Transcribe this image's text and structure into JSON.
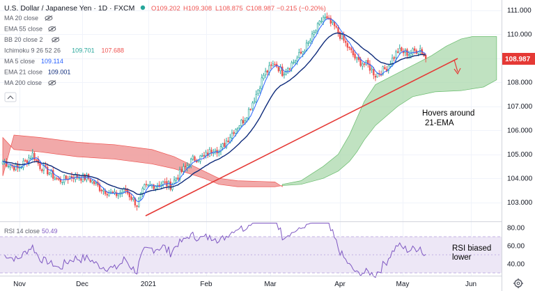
{
  "header": {
    "symbol": "U.S. Dollar / Japanese Yen · 1D · FXCM",
    "ohlc": {
      "open": "O109.202",
      "high": "H109.308",
      "low": "L108.875",
      "close": "C108.987",
      "change": "−0.215 (−0.20%)"
    }
  },
  "indicators": [
    {
      "id": "ma20",
      "label": "MA 20 close",
      "values": [],
      "visible": false
    },
    {
      "id": "ema55",
      "label": "EMA 55 close",
      "values": [],
      "visible": false
    },
    {
      "id": "bb",
      "label": "BB 20 close 2",
      "values": [],
      "visible": false
    },
    {
      "id": "ichimoku",
      "label": "Ichimoku 9 26 52 26",
      "values": [
        "109.701",
        "107.688"
      ],
      "visible": true
    },
    {
      "id": "ma5",
      "label": "MA 5 close",
      "values": [
        "109.114"
      ],
      "visible": true
    },
    {
      "id": "ema21",
      "label": "EMA 21 close",
      "values": [
        "109.001"
      ],
      "visible": true
    },
    {
      "id": "ma200",
      "label": "MA 200 close",
      "values": [],
      "visible": false
    }
  ],
  "price_axis": {
    "ticks": [
      "111.000",
      "110.000",
      "109.000",
      "108.000",
      "107.000",
      "106.000",
      "105.000",
      "104.000",
      "103.000"
    ],
    "last_price": "108.987"
  },
  "rsi": {
    "label": "RSI 14 close",
    "value": "50.49",
    "ticks": [
      "80.00",
      "60.00",
      "40.00"
    ]
  },
  "time_axis": {
    "labels": [
      "Nov",
      "Dec",
      "2021",
      "Feb",
      "Mar",
      "Apr",
      "May",
      "Jun"
    ]
  },
  "annotations": {
    "ema_note": [
      "Hovers around",
      "21-EMA"
    ],
    "rsi_note": [
      "RSI biased",
      "lower"
    ]
  },
  "colors": {
    "up": "#26a69a",
    "down": "#ef5350",
    "candle_body_up": "#ffffff",
    "ema21": "#0d2a7a",
    "ma5": "#2962ff",
    "cloud_bull": "#a5d6a7",
    "cloud_bear": "#ef9a9a",
    "trendline": "#e53935",
    "rsi_line": "#7e57c2",
    "rsi_band": "#ede7f6",
    "price_label_bg": "#e53935"
  },
  "chart_data": {
    "type": "candlestick",
    "title": "U.S. Dollar / Japanese Yen · 1D · FXCM",
    "x_labels": [
      "Nov",
      "Dec",
      "2021",
      "Feb",
      "Mar",
      "Apr",
      "May",
      "Jun"
    ],
    "ylim": [
      102.4,
      111.4
    ],
    "last_ohlc": {
      "open": 109.202,
      "high": 109.308,
      "low": 108.875,
      "close": 108.987
    },
    "series": [
      {
        "name": "Ichimoku 9 26 52 26",
        "values": [
          109.701,
          107.688
        ]
      },
      {
        "name": "MA 5 close",
        "values": [
          109.114
        ]
      },
      {
        "name": "EMA 21 close",
        "values": [
          109.001
        ]
      }
    ],
    "rsi": {
      "name": "RSI 14 close",
      "last": 50.49,
      "ylim": [
        25,
        85
      ],
      "band": [
        30,
        70
      ]
    }
  }
}
